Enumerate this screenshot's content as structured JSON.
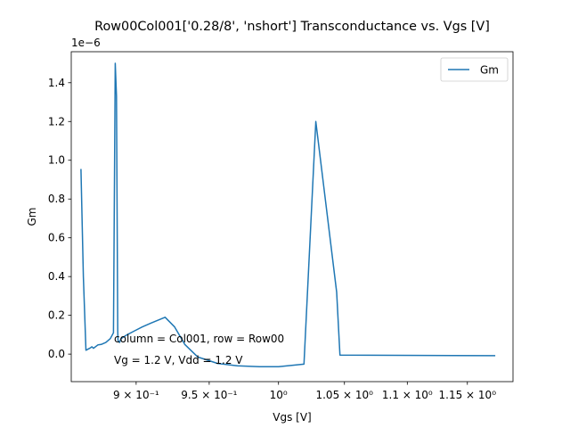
{
  "chart_data": {
    "type": "line",
    "title": "Row00Col001['0.28/8', 'nshort'] Transconductance vs. Vgs [V]",
    "xlabel": "Vgs [V]",
    "ylabel": "Gm",
    "x_scale": "log",
    "y_offset_label": "1e−6",
    "xlim": [
      0.8578,
      1.1895
    ],
    "ylim": [
      -1.42e-07,
      1.56e-06
    ],
    "x_ticks": [
      {
        "value": 0.9,
        "label": "9 × 10⁻¹"
      },
      {
        "value": 0.95,
        "label": "9.5 × 10⁻¹"
      },
      {
        "value": 1.0,
        "label": "10⁰"
      },
      {
        "value": 1.05,
        "label": "1.05 × 10⁰"
      },
      {
        "value": 1.1,
        "label": "1.1 × 10⁰"
      },
      {
        "value": 1.15,
        "label": "1.15 × 10⁰"
      }
    ],
    "y_ticks": [
      {
        "value": 0.0,
        "label": "0.0"
      },
      {
        "value": 2e-07,
        "label": "0.2"
      },
      {
        "value": 4e-07,
        "label": "0.4"
      },
      {
        "value": 6e-07,
        "label": "0.6"
      },
      {
        "value": 8e-07,
        "label": "0.8"
      },
      {
        "value": 1e-06,
        "label": "1.0"
      },
      {
        "value": 1.2e-06,
        "label": "1.2"
      },
      {
        "value": 1.4e-06,
        "label": "1.4"
      }
    ],
    "grid": false,
    "legend_position": "top-right",
    "series": [
      {
        "name": "Gm",
        "color": "#1f77b4",
        "x": [
          0.864,
          0.8655,
          0.8672,
          0.87,
          0.871,
          0.872,
          0.875,
          0.877,
          0.88,
          0.883,
          0.885,
          0.8862,
          0.887,
          0.8878,
          0.888,
          0.889,
          0.89,
          0.894,
          0.899,
          0.904,
          0.91,
          0.9195,
          0.926,
          0.933,
          0.942,
          0.956,
          0.97,
          0.986,
          1.0,
          1.019,
          1.028,
          1.044,
          1.0465,
          1.174
        ],
        "y": [
          9.55e-07,
          4e-07,
          2e-08,
          3.2e-08,
          3.8e-08,
          3e-08,
          4.8e-08,
          5e-08,
          6e-08,
          8e-08,
          1.1e-07,
          1.5e-06,
          1.33e-06,
          1.2e-07,
          7e-08,
          6e-08,
          8e-08,
          1e-07,
          1.2e-07,
          1.4e-07,
          1.6e-07,
          1.9e-07,
          1.4e-07,
          5e-08,
          -1.5e-08,
          -4.8e-08,
          -6e-08,
          -6.5e-08,
          -6.5e-08,
          -5.2e-08,
          1.2e-06,
          3.2e-07,
          -5e-09,
          -8e-09
        ]
      }
    ],
    "annotations": [
      "column = Col001, row = Row00",
      "Vg = 1.2 V, Vdd = 1.2 V"
    ]
  }
}
